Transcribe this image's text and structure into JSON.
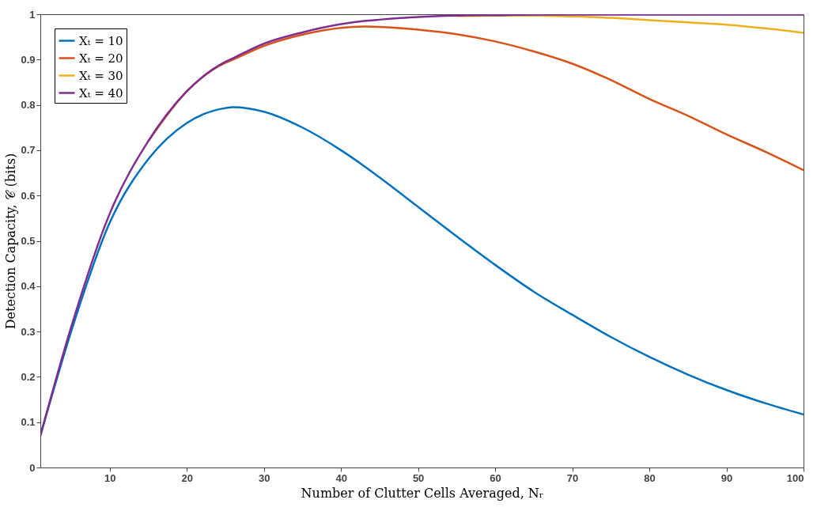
{
  "chart_data": {
    "type": "line",
    "xlabel": "Number of Clutter Cells Averaged, Nᵣ",
    "ylabel": "Detection Capacity, 𝒞 (bits)",
    "x": [
      1,
      5,
      10,
      15,
      20,
      25,
      26,
      30,
      35,
      40,
      43,
      45,
      50,
      55,
      60,
      65,
      70,
      75,
      80,
      85,
      90,
      95,
      100
    ],
    "series": [
      {
        "name": "Xₜ = 10",
        "color": "#0072bd",
        "values": [
          0.07,
          0.3,
          0.54,
          0.68,
          0.76,
          0.793,
          0.795,
          0.785,
          0.75,
          0.7,
          0.665,
          0.64,
          0.575,
          0.51,
          0.447,
          0.388,
          0.337,
          0.288,
          0.244,
          0.205,
          0.171,
          0.142,
          0.117
        ]
      },
      {
        "name": "Xₜ = 20",
        "color": "#d95319",
        "values": [
          null,
          null,
          null,
          0.72,
          0.83,
          0.893,
          0.9,
          0.93,
          0.955,
          0.97,
          0.973,
          0.972,
          0.966,
          0.956,
          0.94,
          0.918,
          0.891,
          0.855,
          0.813,
          0.776,
          0.735,
          0.697,
          0.656
        ]
      },
      {
        "name": "Xₜ = 30",
        "color": "#edb120",
        "values": [
          null,
          null,
          null,
          null,
          null,
          null,
          null,
          null,
          null,
          null,
          null,
          null,
          null,
          0.996,
          0.997,
          0.997,
          0.995,
          0.992,
          0.987,
          0.982,
          0.977,
          0.969,
          0.959
        ]
      },
      {
        "name": "Xₜ = 40",
        "color": "#7e2f8e",
        "values": [
          0.07,
          0.31,
          0.56,
          0.72,
          0.83,
          0.895,
          0.903,
          0.935,
          0.96,
          0.978,
          0.985,
          0.988,
          0.994,
          0.997,
          0.998,
          0.999,
          0.999,
          0.999,
          0.999,
          0.999,
          0.999,
          0.999,
          0.999
        ]
      }
    ],
    "xlim": [
      1,
      100
    ],
    "xticks": [
      10,
      20,
      30,
      40,
      50,
      60,
      70,
      80,
      90,
      100
    ],
    "ylim": [
      0,
      1
    ],
    "yticks": [
      0,
      0.1,
      0.2,
      0.3,
      0.4,
      0.5,
      0.6,
      0.7,
      0.8,
      0.9,
      1
    ],
    "grid": false,
    "legend": "top left"
  }
}
